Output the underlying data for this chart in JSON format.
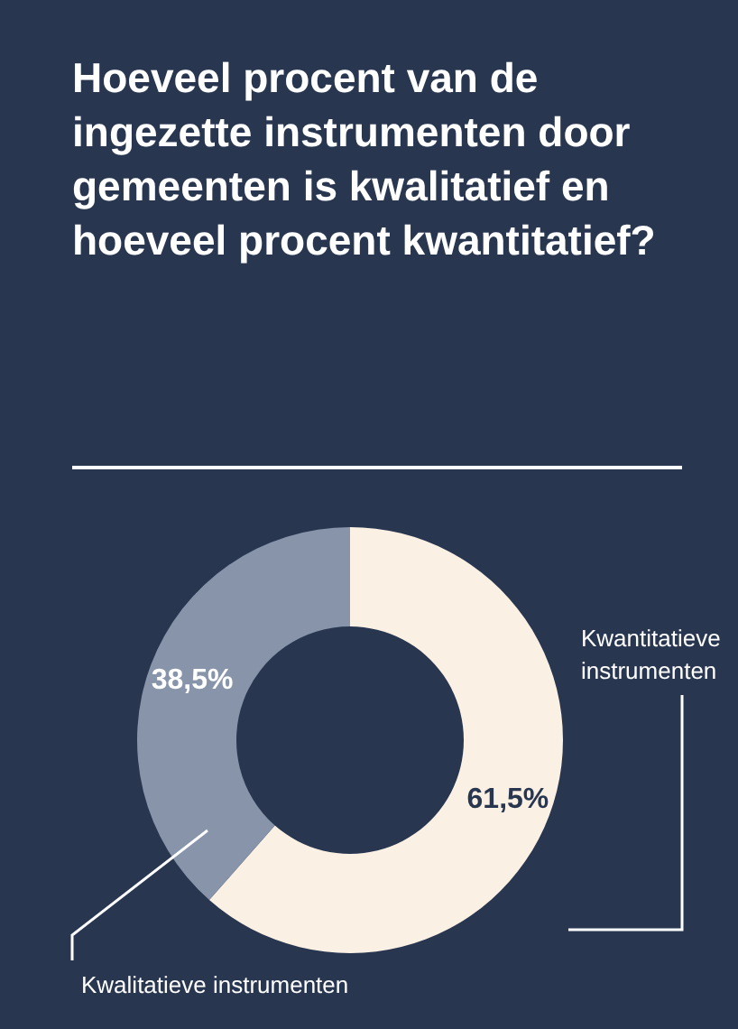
{
  "chart_data": {
    "type": "donut",
    "title": "Hoeveel procent van de ingezette instrumenten door gemeenten is kwalitatief en hoeveel procent kwantitatief?",
    "categories": [
      "Kwantitatieve instrumenten",
      "Kwalitatieve instrumenten"
    ],
    "values": [
      61.5,
      38.5
    ],
    "colors": [
      "#fbf0e4",
      "#8794aa"
    ],
    "value_labels": [
      "61,5%",
      "38,5%"
    ]
  }
}
